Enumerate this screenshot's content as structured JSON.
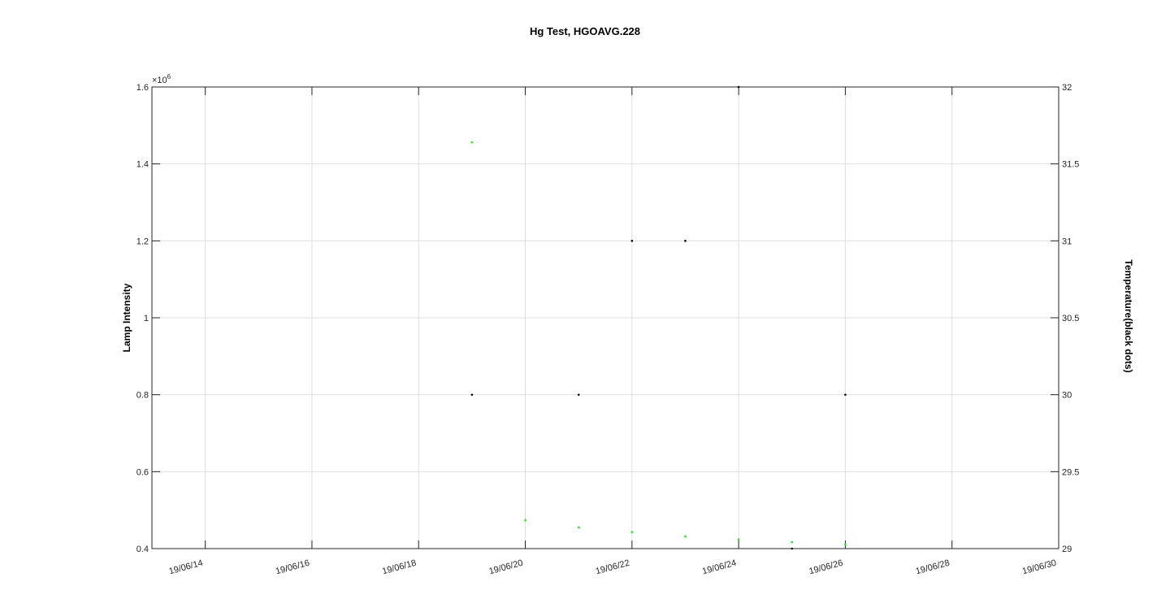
{
  "chart_data": {
    "type": "scatter",
    "title": "Hg Test, HGOAVG.228",
    "ylabel": "Lamp Intensity",
    "y2label": "Temperature(black dots)",
    "x_ticks": [
      "19/06/14",
      "19/06/16",
      "19/06/18",
      "19/06/20",
      "19/06/22",
      "19/06/24",
      "19/06/26",
      "19/06/28",
      "19/06/30"
    ],
    "xlim": [
      "19/06/13",
      "19/06/30"
    ],
    "y_ticks": [
      "0.4",
      "0.6",
      "0.8",
      "1",
      "1.2",
      "1.4",
      "1.6"
    ],
    "y_exponent_base": "×10",
    "y_exponent_power": "6",
    "ylim": [
      0.4,
      1.6
    ],
    "y2_ticks": [
      "29",
      "29.5",
      "30",
      "30.5",
      "31",
      "31.5",
      "32"
    ],
    "y2lim": [
      29,
      32
    ],
    "grid": true,
    "series": [
      {
        "color": "#00ff00",
        "axis": "left",
        "points": [
          [
            "19/06/19",
            1.456
          ],
          [
            "19/06/20",
            0.474
          ],
          [
            "19/06/21",
            0.455
          ],
          [
            "19/06/22",
            0.443
          ],
          [
            "19/06/23",
            0.432
          ],
          [
            "19/06/24",
            0.424
          ],
          [
            "19/06/25",
            0.417
          ],
          [
            "19/06/26",
            0.411
          ]
        ]
      },
      {
        "color": "#000000",
        "axis": "right",
        "points": [
          [
            "19/06/19",
            30
          ],
          [
            "19/06/21",
            30
          ],
          [
            "19/06/22",
            31
          ],
          [
            "19/06/23",
            31
          ],
          [
            "19/06/24",
            32
          ],
          [
            "19/06/25",
            29
          ],
          [
            "19/06/26",
            30
          ]
        ]
      }
    ]
  }
}
